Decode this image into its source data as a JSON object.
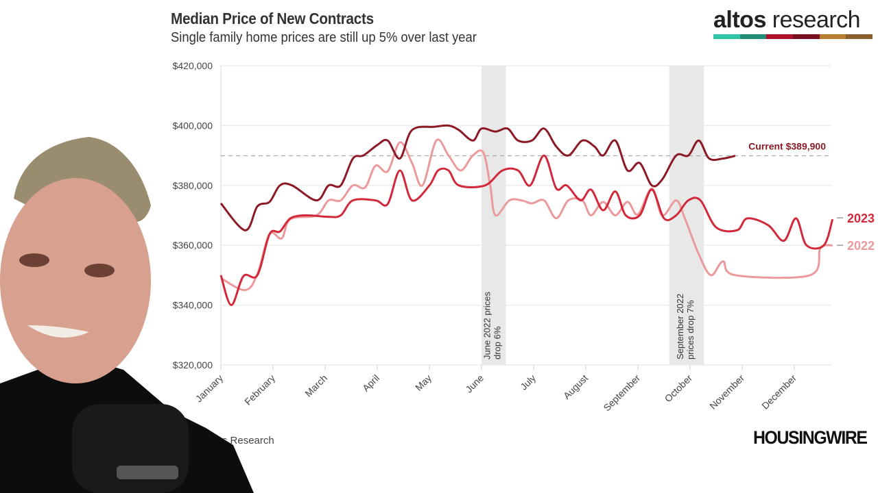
{
  "header": {
    "title": "Median Price of New Contracts",
    "subtitle": "Single family home prices are still up 5% over last year"
  },
  "logo": {
    "text_bold": "altos",
    "text_light": " research",
    "bar_colors": [
      "#2ec4a5",
      "#1f8c75",
      "#b0122e",
      "#7d0f22",
      "#b67d2c",
      "#8a5d2a"
    ]
  },
  "source": "Altos Research",
  "brand": "HOUSINGWIRE",
  "chart_data": {
    "type": "line",
    "title": "Median Price of New Contracts",
    "subtitle": "Single family home prices are still up 5% over last year",
    "xlabel": "",
    "ylabel": "",
    "x_ticks": [
      "January",
      "February",
      "March",
      "April",
      "May",
      "June",
      "July",
      "August",
      "September",
      "October",
      "November",
      "December"
    ],
    "y_ticks": [
      "$320,000",
      "$340,000",
      "$360,000",
      "$380,000",
      "$400,000",
      "$420,000"
    ],
    "ylim": [
      320000,
      420000
    ],
    "grid": "horizontal",
    "legend": "right end labels",
    "reference_line": {
      "value": 389900,
      "label": "Current $389,900",
      "style": "dashed"
    },
    "bands": [
      {
        "start": "06-01",
        "end": "06-15",
        "label": "June 2022 prices drop 6%"
      },
      {
        "start": "09-19",
        "end": "10-09",
        "label": "September 2022 prices drop 7%"
      }
    ],
    "series": [
      {
        "color": "#8b1a26",
        "points": [
          [
            "01-01",
            374000
          ],
          [
            "01-15",
            365000
          ],
          [
            "01-22",
            373000
          ],
          [
            "01-29",
            374500
          ],
          [
            "02-05",
            380000
          ],
          [
            "02-12",
            380000
          ],
          [
            "02-26",
            375000
          ],
          [
            "03-03",
            380000
          ],
          [
            "03-10",
            380000
          ],
          [
            "03-17",
            389000
          ],
          [
            "03-23",
            390000
          ],
          [
            "03-31",
            393500
          ],
          [
            "04-07",
            395000
          ],
          [
            "04-14",
            389000
          ],
          [
            "04-21",
            398500
          ],
          [
            "05-04",
            399600
          ],
          [
            "05-12",
            400000
          ],
          [
            "05-18",
            398500
          ],
          [
            "05-26",
            395000
          ],
          [
            "06-01",
            399000
          ],
          [
            "06-09",
            398000
          ],
          [
            "06-16",
            399000
          ],
          [
            "06-22",
            395000
          ],
          [
            "06-30",
            395000
          ],
          [
            "07-07",
            399000
          ],
          [
            "07-14",
            393000
          ],
          [
            "07-21",
            390000
          ],
          [
            "07-29",
            395000
          ],
          [
            "08-06",
            393000
          ],
          [
            "08-11",
            390000
          ],
          [
            "08-18",
            395000
          ],
          [
            "08-25",
            385000
          ],
          [
            "09-02",
            387500
          ],
          [
            "09-09",
            380000
          ],
          [
            "09-15",
            382000
          ],
          [
            "09-23",
            390000
          ],
          [
            "09-30",
            390000
          ],
          [
            "10-06",
            395000
          ],
          [
            "10-12",
            389000
          ],
          [
            "10-20",
            389000
          ],
          [
            "10-27",
            389900
          ]
        ]
      },
      {
        "name": "2023",
        "color": "#d1283a",
        "points": [
          [
            "01-01",
            350000
          ],
          [
            "01-07",
            340000
          ],
          [
            "01-14",
            349700
          ],
          [
            "01-22",
            350000
          ],
          [
            "01-29",
            363700
          ],
          [
            "02-05",
            364600
          ],
          [
            "02-11",
            369000
          ],
          [
            "02-20",
            370000
          ],
          [
            "03-03",
            369500
          ],
          [
            "03-10",
            370000
          ],
          [
            "03-17",
            375000
          ],
          [
            "03-30",
            375000
          ],
          [
            "04-07",
            373800
          ],
          [
            "04-14",
            385000
          ],
          [
            "04-21",
            375000
          ],
          [
            "05-01",
            380000
          ],
          [
            "05-06",
            385000
          ],
          [
            "05-12",
            385000
          ],
          [
            "05-18",
            380000
          ],
          [
            "06-03",
            380000
          ],
          [
            "06-13",
            385000
          ],
          [
            "06-22",
            385000
          ],
          [
            "06-29",
            380000
          ],
          [
            "07-07",
            390000
          ],
          [
            "07-14",
            379000
          ],
          [
            "07-20",
            380000
          ],
          [
            "07-28",
            375000
          ],
          [
            "08-04",
            378600
          ],
          [
            "08-11",
            371700
          ],
          [
            "08-18",
            378000
          ],
          [
            "08-24",
            370000
          ],
          [
            "09-02",
            370000
          ],
          [
            "09-09",
            378600
          ],
          [
            "09-16",
            369000
          ],
          [
            "09-23",
            370000
          ],
          [
            "09-30",
            375000
          ],
          [
            "10-07",
            375000
          ],
          [
            "10-16",
            366000
          ],
          [
            "10-28",
            365000
          ],
          [
            "11-04",
            369000
          ],
          [
            "11-16",
            366700
          ],
          [
            "11-25",
            361500
          ],
          [
            "12-02",
            369000
          ],
          [
            "12-08",
            360000
          ],
          [
            "12-18",
            360000
          ],
          [
            "12-23",
            368700
          ]
        ]
      },
      {
        "name": "2022",
        "color": "#eb9a9c",
        "points": [
          [
            "01-01",
            349000
          ],
          [
            "01-15",
            345000
          ],
          [
            "01-22",
            350400
          ],
          [
            "01-29",
            363700
          ],
          [
            "02-06",
            362300
          ],
          [
            "02-11",
            368700
          ],
          [
            "02-26",
            370000
          ],
          [
            "03-03",
            375000
          ],
          [
            "03-10",
            375000
          ],
          [
            "03-17",
            380000
          ],
          [
            "03-24",
            379300
          ],
          [
            "03-30",
            386600
          ],
          [
            "04-07",
            384700
          ],
          [
            "04-14",
            394400
          ],
          [
            "04-21",
            387500
          ],
          [
            "04-27",
            380000
          ],
          [
            "05-05",
            395000
          ],
          [
            "05-12",
            390000
          ],
          [
            "05-19",
            385000
          ],
          [
            "05-26",
            390000
          ],
          [
            "06-02",
            391000
          ],
          [
            "06-06",
            380000
          ],
          [
            "06-09",
            370000
          ],
          [
            "06-17",
            375000
          ],
          [
            "06-24",
            375000
          ],
          [
            "06-30",
            374000
          ],
          [
            "07-07",
            375000
          ],
          [
            "07-14",
            369000
          ],
          [
            "07-21",
            375000
          ],
          [
            "07-29",
            375000
          ],
          [
            "08-04",
            370000
          ],
          [
            "08-11",
            374500
          ],
          [
            "08-18",
            370000
          ],
          [
            "08-25",
            374500
          ],
          [
            "09-01",
            370300
          ],
          [
            "09-09",
            379000
          ],
          [
            "09-15",
            370000
          ],
          [
            "09-23",
            375000
          ],
          [
            "09-28",
            369000
          ],
          [
            "10-06",
            357000
          ],
          [
            "10-13",
            350000
          ],
          [
            "10-20",
            354600
          ],
          [
            "10-27",
            350000
          ],
          [
            "12-10",
            350000
          ],
          [
            "12-16",
            359000
          ],
          [
            "12-23",
            360000
          ]
        ]
      }
    ]
  }
}
